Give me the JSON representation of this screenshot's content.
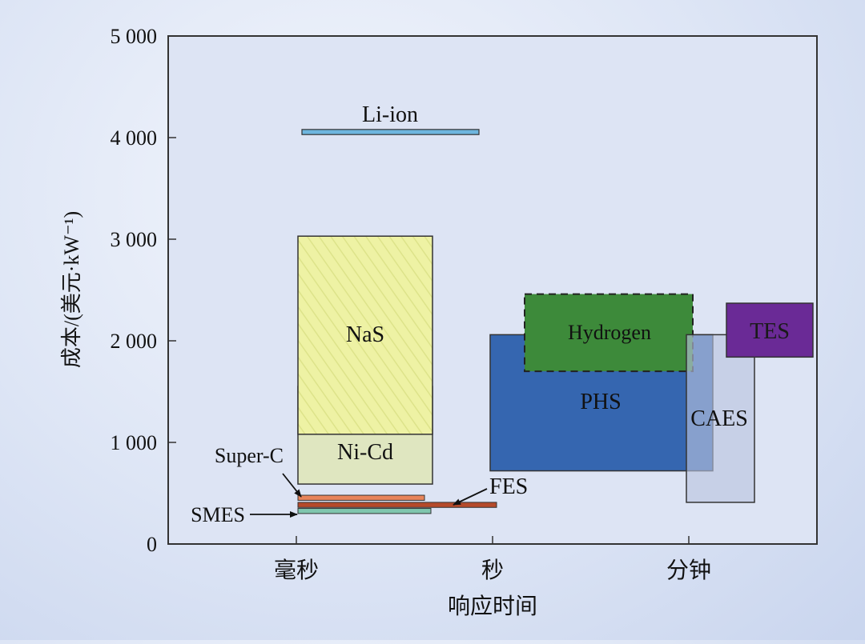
{
  "chart_data": {
    "type": "range-box",
    "xlabel": "响应时间",
    "ylabel": "成本/(美元·kW⁻¹)",
    "x_categories": [
      "毫秒",
      "秒",
      "分钟"
    ],
    "ylim": [
      0,
      5000
    ],
    "y_ticks": [
      0,
      1000,
      2000,
      3000,
      4000,
      5000
    ],
    "y_tick_labels": [
      "0",
      "1 000",
      "2 000",
      "3 000",
      "4 000",
      "5 000"
    ],
    "grid": false,
    "series": [
      {
        "name": "NaS",
        "x_range": [
          "毫秒",
          "秒"
        ],
        "cost_range": [
          1080,
          3030
        ],
        "color": "#eef2a4"
      },
      {
        "name": "Ni-Cd",
        "x_range": [
          "毫秒",
          "秒"
        ],
        "cost_range": [
          590,
          1550
        ],
        "color": "#dfe6b6"
      },
      {
        "name": "Li-ion",
        "x_range": [
          "毫秒",
          "秒"
        ],
        "cost_range": [
          4030,
          4080
        ],
        "color": "#6db5de"
      },
      {
        "name": "Super-C",
        "x_range": [
          "毫秒",
          "秒"
        ],
        "cost_range": [
          430,
          480
        ],
        "color": "#e8845a"
      },
      {
        "name": "FES",
        "x_range": [
          "毫秒",
          "秒"
        ],
        "cost_range": [
          360,
          410
        ],
        "color": "#b54a2a"
      },
      {
        "name": "SMES",
        "x_range": [
          "毫秒",
          "秒"
        ],
        "cost_range": [
          300,
          350
        ],
        "color": "#7fc6ae"
      },
      {
        "name": "PHS",
        "x_range": [
          "秒",
          "分钟"
        ],
        "cost_range": [
          720,
          2060
        ],
        "color": "#3566b0"
      },
      {
        "name": "Hydrogen",
        "x_range": [
          "秒",
          "分钟"
        ],
        "cost_range": [
          1700,
          2460
        ],
        "color": "#3d8a3a"
      },
      {
        "name": "CAES",
        "x_range": [
          "分钟",
          "分钟"
        ],
        "cost_range": [
          410,
          2060
        ],
        "color": "#b9c3de"
      },
      {
        "name": "TES",
        "x_range": [
          "分钟",
          "分钟"
        ],
        "cost_range": [
          1840,
          2370
        ],
        "color": "#6a2a96"
      }
    ]
  }
}
